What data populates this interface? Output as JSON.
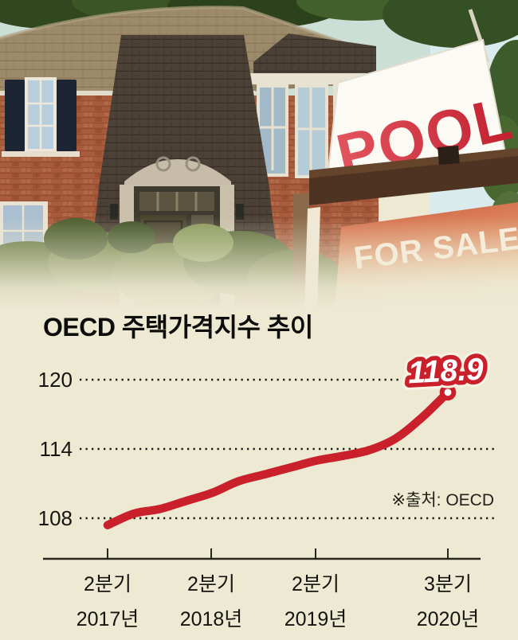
{
  "page": {
    "background_color": "#EDE9D3",
    "accent_red": "#C9202B"
  },
  "photo": {
    "description": "brick house with for-sale yard signs",
    "pool_sign_label": "POOL",
    "for_sale_label": "FOR SALE"
  },
  "chart": {
    "title": "OECD 주택가격지수 추이",
    "source_note": "※출처: OECD",
    "annotation_label": "118.9",
    "y_tick_labels": [
      "120",
      "114",
      "108"
    ],
    "x_tick_labels": [
      {
        "quarter": "2분기",
        "year": "2017년"
      },
      {
        "quarter": "2분기",
        "year": "2018년"
      },
      {
        "quarter": "2분기",
        "year": "2019년"
      },
      {
        "quarter": "3분기",
        "year": "2020년"
      }
    ]
  },
  "chart_data": {
    "type": "line",
    "title": "OECD 주택가격지수 추이",
    "x": [
      "2017 Q2",
      "2017 Q3",
      "2017 Q4",
      "2018 Q1",
      "2018 Q2",
      "2018 Q3",
      "2018 Q4",
      "2019 Q1",
      "2019 Q2",
      "2019 Q3",
      "2019 Q4",
      "2020 Q1",
      "2020 Q2",
      "2020 Q3"
    ],
    "series": [
      {
        "name": "OECD 주택가격지수",
        "values": [
          107.4,
          108.4,
          108.8,
          109.5,
          110.2,
          111.2,
          111.8,
          112.4,
          113.0,
          113.4,
          113.9,
          114.9,
          116.7,
          118.9
        ]
      }
    ],
    "y_ticks": [
      108,
      114,
      120
    ],
    "ylim": [
      106.5,
      121.5
    ],
    "x_major_tick_labels": [
      "2분기 2017년",
      "2분기 2018년",
      "2분기 2019년",
      "3분기 2020년"
    ],
    "grid": "dotted-horizontal",
    "legend": "none",
    "line_color": "#C9202B",
    "endpoint_label": "118.9",
    "source": "※출처: OECD"
  }
}
